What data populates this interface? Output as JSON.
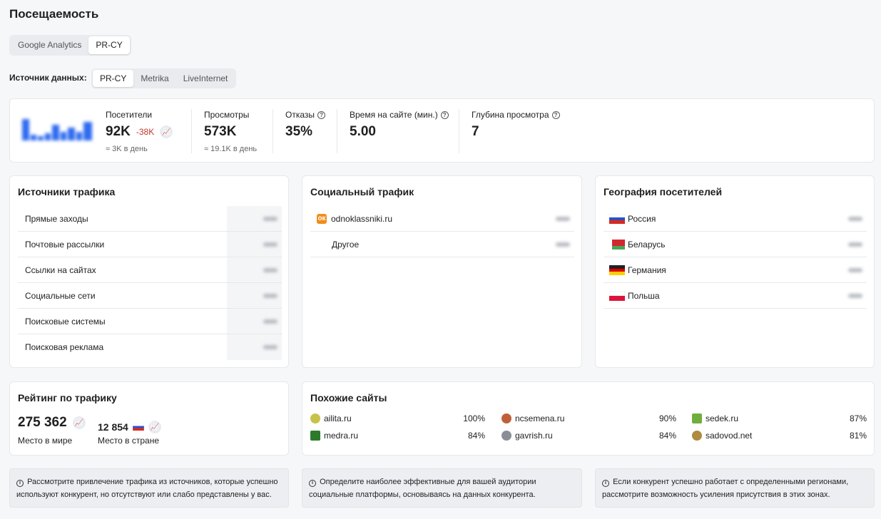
{
  "page": {
    "title": "Посещаемость"
  },
  "tabs_top": [
    {
      "label": "Google Analytics",
      "active": false
    },
    {
      "label": "PR-CY",
      "active": true
    }
  ],
  "source": {
    "label": "Источник данных:",
    "options": [
      {
        "label": "PR-CY",
        "active": true
      },
      {
        "label": "Metrika",
        "active": false
      },
      {
        "label": "LiveInternet",
        "active": false
      }
    ]
  },
  "stats": {
    "visitors": {
      "label": "Посетители",
      "value": "92K",
      "delta": "-38K",
      "sub": "≈ 3K в день"
    },
    "views": {
      "label": "Просмотры",
      "value": "573K",
      "sub": "≈ 19.1K в день"
    },
    "bounce": {
      "label": "Отказы",
      "value": "35%"
    },
    "time": {
      "label": "Время на сайте (мин.)",
      "value": "5.00"
    },
    "depth": {
      "label": "Глубина просмотра",
      "value": "7"
    }
  },
  "traffic_sources": {
    "title": "Источники трафика",
    "items": [
      "Прямые заходы",
      "Почтовые рассылки",
      "Ссылки на сайтах",
      "Социальные сети",
      "Поисковые системы",
      "Поисковая реклама"
    ]
  },
  "social": {
    "title": "Социальный трафик",
    "items": [
      "odnoklassniki.ru",
      "Другое"
    ],
    "icon_letter": "ок"
  },
  "geo": {
    "title": "География посетителей",
    "items": [
      "Россия",
      "Беларусь",
      "Германия",
      "Польша"
    ]
  },
  "rating": {
    "title": "Рейтинг по трафику",
    "world_value": "275 362",
    "world_label": "Место в мире",
    "country_value": "12 854",
    "country_label": "Место в стране"
  },
  "similar": {
    "title": "Похожие сайты",
    "items": [
      {
        "site": "ailita.ru",
        "pct": "100%",
        "color": "#c9c24a"
      },
      {
        "site": "ncsemena.ru",
        "pct": "90%",
        "color": "#c0603a"
      },
      {
        "site": "sedek.ru",
        "pct": "87%",
        "color": "#6fae3c"
      },
      {
        "site": "medra.ru",
        "pct": "84%",
        "color": "#2c7a2c"
      },
      {
        "site": "gavrish.ru",
        "pct": "84%",
        "color": "#8a8f96"
      },
      {
        "site": "sadovod.net",
        "pct": "81%",
        "color": "#b08a3e"
      }
    ]
  },
  "notes": [
    "Рассмотрите привлечение трафика из источников, которые успешно используют конкурент, но отсутствуют или слабо представлены у вас.",
    "Определите наиболее эффективные для вашей аудитории социальные платформы, основываясь на данных конкурента.",
    "Если конкурент успешно работает с определенными регионами, рассмотрите возможность усиления присутствия в этих зонах."
  ],
  "colors": {
    "delta": "#c0392b",
    "ok": "#f28c1a",
    "spark": "#2f6bf0"
  }
}
